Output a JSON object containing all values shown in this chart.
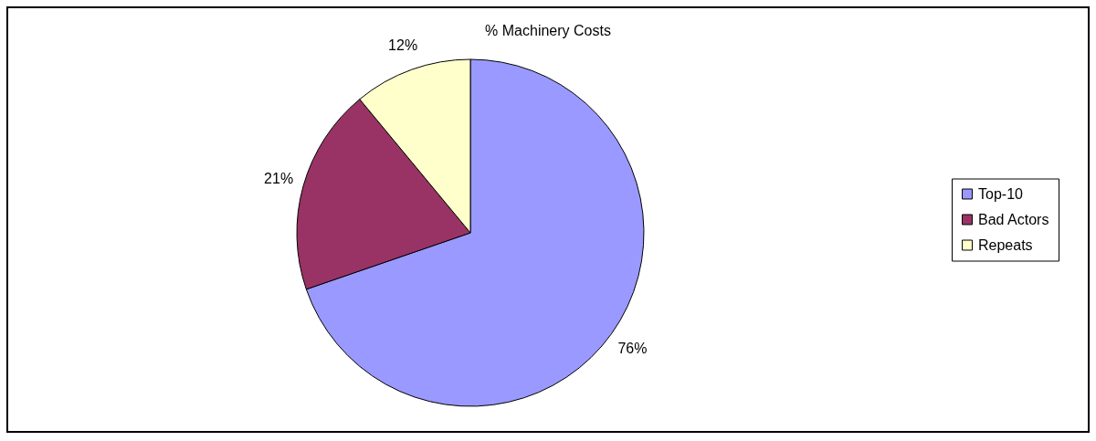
{
  "chart_data": {
    "type": "pie",
    "title": "% Machinery Costs",
    "categories": [
      "Top-10",
      "Bad Actors",
      "Repeats"
    ],
    "values": [
      76,
      21,
      12
    ],
    "colors": [
      "#9999ff",
      "#993366",
      "#ffffcc"
    ],
    "value_labels": [
      "76%",
      "21%",
      "12%"
    ],
    "legend": "right"
  }
}
